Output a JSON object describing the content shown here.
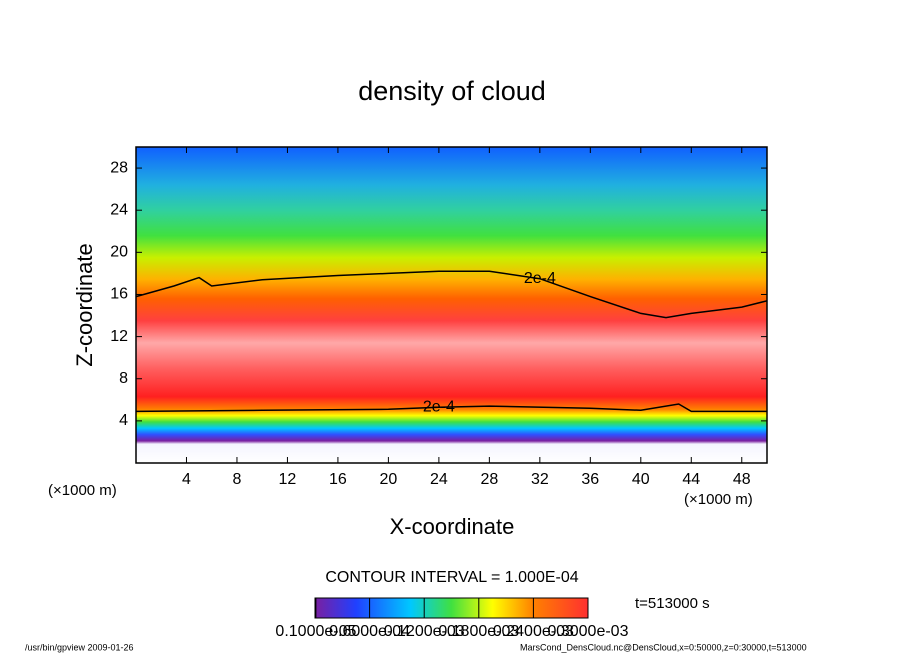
{
  "chart_data": {
    "type": "contour",
    "title": "density of cloud",
    "x_label": "X-coordinate",
    "y_label": "Z-coordinate",
    "x_unit": "(×1000 m)",
    "y_unit": "(×1000 m)",
    "xlim": [
      0,
      50
    ],
    "ylim": [
      0,
      30
    ],
    "xticks": [
      4,
      8,
      12,
      16,
      20,
      24,
      28,
      32,
      36,
      40,
      44,
      48
    ],
    "yticks": [
      4,
      8,
      12,
      16,
      20,
      24,
      28
    ],
    "contours": [
      {
        "level": 0.0002,
        "label": "2e-4",
        "x": [
          0,
          3,
          5,
          6,
          10,
          16,
          20,
          24,
          28,
          32,
          36,
          40,
          42,
          44,
          48,
          50
        ],
        "y": [
          15.8,
          16.8,
          17.6,
          16.8,
          17.4,
          17.8,
          18.0,
          18.2,
          18.2,
          17.5,
          15.8,
          14.2,
          13.8,
          14.2,
          14.8,
          15.4
        ]
      },
      {
        "level": 0.0002,
        "label": "2e-4",
        "x": [
          0,
          10,
          20,
          24,
          28,
          36,
          40,
          43,
          44,
          50
        ],
        "y": [
          4.9,
          5.0,
          5.1,
          5.3,
          5.4,
          5.2,
          5.0,
          5.6,
          4.9,
          4.9
        ]
      }
    ],
    "contour_interval": "CONTOUR INTERVAL = 1.000E-04",
    "clim": [
      0,
      0.0003
    ],
    "cticks": [
      {
        "value": 1e-06,
        "label": "0.1000e-05"
      },
      {
        "value": 6e-05,
        "label": "0.6000e-04"
      },
      {
        "value": 0.00012,
        "label": "0.1200e-03"
      },
      {
        "value": 0.00018,
        "label": "0.1800e-03"
      },
      {
        "value": 0.00024,
        "label": "0.2400e-03"
      },
      {
        "value": 0.0003,
        "label": "0.3000e-03"
      }
    ],
    "time": "t=513000 s",
    "footer_left": "/usr/bin/gpview   2009-01-26",
    "footer_right": "MarsCond_DensCloud.nc@DensCloud,x=0:50000,z=0:30000,t=513000"
  }
}
